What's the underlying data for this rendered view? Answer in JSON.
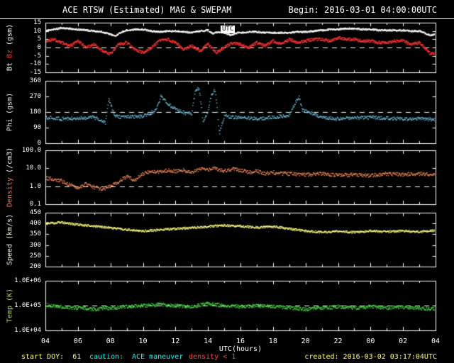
{
  "header": {
    "title": "ACE RTSW (Estimated) MAG & SWEPAM",
    "begin_label": "Begin: 2016-03-01 04:00:00UTC"
  },
  "footer": {
    "start_doy": "start DOY:  61",
    "caution_prefix": "caution:",
    "caution_text": "ACE maneuver",
    "caution_warn": "density < 1",
    "created": "created: 2016-03-02 03:17:04UTC"
  },
  "overlay": {
    "label": "UTC"
  },
  "x_axis": {
    "label": "UTC(hours)",
    "ticks": [
      "04",
      "06",
      "08",
      "10",
      "12",
      "14",
      "16",
      "18",
      "20",
      "22",
      "00",
      "02",
      "04"
    ]
  },
  "colors": {
    "background": "#000000",
    "frame": "#ffffff",
    "bt": "#ffffff",
    "bz": "#ff3333",
    "phi": "#6fc3df",
    "density": "#ff9060",
    "speed": "#ffff80",
    "temp": "#44dd44",
    "footer_yellow": "#ffff66",
    "footer_cyan": "#00ffff",
    "footer_red": "#ff4444"
  },
  "chart_data": {
    "type": "scatter",
    "title": "ACE RTSW (Estimated) MAG & SWEPAM",
    "x_label": "UTC(hours)",
    "x_range": [
      4,
      28
    ],
    "x_tick_hours": [
      4,
      6,
      8,
      10,
      12,
      14,
      16,
      18,
      20,
      22,
      24,
      26,
      28
    ],
    "panels": [
      {
        "name": "bt_bz",
        "scale": "linear",
        "ylim": [
          -15,
          15
        ],
        "dashed_at": 0,
        "yticks": [
          {
            "v": 15,
            "label": "15"
          },
          {
            "v": 10,
            "label": "10"
          },
          {
            "v": 5,
            "label": "5"
          },
          {
            "v": 0,
            "label": "0"
          },
          {
            "v": -5,
            "label": "-5"
          },
          {
            "v": -10,
            "label": "-10"
          },
          {
            "v": -15,
            "label": "-15"
          }
        ],
        "ylabel_parts": [
          {
            "text": "Bt ",
            "color": "#ffffff"
          },
          {
            "text": "Bz ",
            "color": "#ff3333"
          },
          {
            "text": "(gsm)",
            "color": "#ffffff"
          }
        ],
        "series": [
          {
            "name": "Bt",
            "color": "#ffffff",
            "noise": 0.5,
            "x": [
              4,
              4.5,
              5,
              5.5,
              6,
              6.5,
              7,
              7.5,
              8,
              8.3,
              8.6,
              9,
              9.5,
              10,
              10.5,
              11,
              11.5,
              12,
              12.5,
              13,
              13.5,
              14,
              14.3,
              14.6,
              15,
              15.4,
              15.8,
              16,
              16.5,
              17,
              17.5,
              18,
              18.5,
              19,
              19.5,
              20,
              20.5,
              21,
              21.5,
              22,
              22.5,
              23,
              23.5,
              24,
              24.5,
              25,
              25.5,
              26,
              26.5,
              27,
              27.3,
              27.6,
              28
            ],
            "y": [
              10,
              11,
              12,
              11.5,
              11,
              10.5,
              10,
              9.5,
              8,
              7,
              9,
              10.5,
              11,
              11,
              10,
              9.5,
              10,
              10,
              9.5,
              9,
              10,
              10.5,
              8.5,
              9.5,
              9,
              7.5,
              9,
              9,
              9.5,
              9.5,
              9,
              9,
              9,
              9,
              9.5,
              9.5,
              10,
              10.5,
              11,
              11,
              11.5,
              11.5,
              11,
              11,
              10.5,
              10.5,
              10.5,
              10.5,
              10,
              10,
              9,
              7.5,
              8
            ]
          },
          {
            "name": "Bz",
            "color": "#ff3333",
            "noise": 0.9,
            "x": [
              4,
              4.5,
              5,
              5.5,
              6,
              6.5,
              7,
              7.5,
              8,
              8.5,
              9,
              9.5,
              10,
              10.5,
              11,
              11.5,
              12,
              12.5,
              13,
              13.5,
              14,
              14.5,
              15,
              15.5,
              16,
              16.5,
              17,
              17.5,
              18,
              18.5,
              19,
              19.5,
              20,
              20.5,
              21,
              21.5,
              22,
              22.5,
              23,
              23.5,
              24,
              24.5,
              25,
              25.5,
              26,
              26.5,
              27,
              27.4,
              27.7,
              28
            ],
            "y": [
              4,
              5,
              3,
              1,
              4,
              0,
              2,
              -2,
              -4,
              2,
              3,
              -1,
              -3,
              0,
              4,
              5,
              3,
              -1,
              1,
              -2,
              2,
              -3,
              0,
              3,
              2,
              0,
              3,
              1,
              4,
              2,
              5,
              3,
              4,
              5,
              5,
              4,
              6,
              5,
              5,
              4,
              4,
              3,
              3,
              4,
              4,
              2,
              3,
              -1,
              -4,
              -3
            ]
          }
        ]
      },
      {
        "name": "phi",
        "scale": "linear",
        "ylim": [
          0,
          360
        ],
        "dashed_at": 180,
        "yticks": [
          {
            "v": 360,
            "label": "360"
          },
          {
            "v": 270,
            "label": "270"
          },
          {
            "v": 180,
            "label": "180"
          },
          {
            "v": 90,
            "label": "90"
          },
          {
            "v": 0,
            "label": "0"
          }
        ],
        "ylabel_parts": [
          {
            "text": "Phi (gsm)",
            "color": "#e8e8e8"
          }
        ],
        "series": [
          {
            "name": "Phi",
            "color": "#6fc3df",
            "noise": 10,
            "x": [
              4,
              5,
              6,
              7,
              7.7,
              7.9,
              8.1,
              8.3,
              9,
              10,
              10.8,
              11.1,
              11.4,
              11.8,
              12.2,
              12.6,
              13,
              13.2,
              13.45,
              13.7,
              14,
              14.2,
              14.45,
              14.7,
              15,
              15.5,
              16,
              17,
              18,
              19,
              19.4,
              19.6,
              19.8,
              20.5,
              21,
              22,
              23,
              24,
              25,
              26,
              27,
              28
            ],
            "y": [
              150,
              140,
              145,
              150,
              120,
              260,
              200,
              155,
              150,
              155,
              190,
              270,
              240,
              210,
              190,
              175,
              170,
              300,
              320,
              120,
              180,
              280,
              310,
              60,
              160,
              150,
              150,
              140,
              150,
              160,
              240,
              270,
              190,
              170,
              150,
              140,
              145,
              150,
              145,
              140,
              145,
              135
            ]
          }
        ]
      },
      {
        "name": "density",
        "scale": "log",
        "ylim": [
          0.1,
          100
        ],
        "dashed_at": 1,
        "yticks": [
          {
            "v": 100,
            "label": "100.0"
          },
          {
            "v": 10,
            "label": "10.0"
          },
          {
            "v": 1,
            "label": "1.0"
          },
          {
            "v": 0.1,
            "label": "0.1"
          }
        ],
        "ylabel_parts": [
          {
            "text": "Density ",
            "color": "#ff7050"
          },
          {
            "text": "(/cm3)",
            "color": "#ffffff"
          }
        ],
        "series": [
          {
            "name": "Density",
            "color": "#ff9060",
            "noise": 0.1,
            "x": [
              4,
              4.5,
              5,
              5.5,
              6,
              6.5,
              7,
              7.5,
              8,
              8.5,
              9,
              9.5,
              10,
              10.5,
              11,
              11.5,
              12,
              12.5,
              13,
              13.5,
              14,
              14.5,
              15,
              15.5,
              16,
              16.5,
              17,
              17.5,
              18,
              18.5,
              19,
              20,
              21,
              22,
              23,
              24,
              25,
              26,
              27,
              28
            ],
            "y": [
              3,
              2.5,
              2,
              1.2,
              0.8,
              1.4,
              0.9,
              0.7,
              1.0,
              1.8,
              3.5,
              2.2,
              5,
              7,
              6,
              8,
              7,
              8,
              6,
              9,
              8,
              10,
              7,
              9,
              8,
              6,
              7,
              5,
              6,
              5,
              5,
              4.5,
              5,
              4,
              4.5,
              4,
              5,
              4.5,
              5,
              4.5
            ]
          }
        ]
      },
      {
        "name": "speed",
        "scale": "linear",
        "ylim": [
          200,
          450
        ],
        "dashed_at": null,
        "yticks": [
          {
            "v": 450,
            "label": "450"
          },
          {
            "v": 400,
            "label": "400"
          },
          {
            "v": 350,
            "label": "350"
          },
          {
            "v": 300,
            "label": "300"
          },
          {
            "v": 250,
            "label": "250"
          },
          {
            "v": 200,
            "label": "200"
          }
        ],
        "ylabel_parts": [
          {
            "text": "Speed (km/s)",
            "color": "#f2f2e0"
          }
        ],
        "series": [
          {
            "name": "Speed",
            "color": "#ffff80",
            "noise": 5,
            "x": [
              4,
              5,
              6,
              7,
              8,
              9,
              10,
              11,
              12,
              13,
              14,
              15,
              16,
              17,
              18,
              19,
              20,
              21,
              22,
              23,
              24,
              25,
              26,
              27,
              28
            ],
            "y": [
              400,
              405,
              395,
              388,
              380,
              372,
              366,
              370,
              376,
              380,
              386,
              392,
              388,
              382,
              386,
              376,
              366,
              360,
              364,
              360,
              366,
              362,
              366,
              362,
              368
            ]
          }
        ]
      },
      {
        "name": "temp",
        "scale": "log",
        "ylim": [
          10000,
          1000000
        ],
        "dashed_at": 100000,
        "yticks": [
          {
            "v": 1000000,
            "label": "1.0E+06"
          },
          {
            "v": 100000,
            "label": "1.0E+05"
          },
          {
            "v": 10000,
            "label": "1.0E+04"
          }
        ],
        "ylabel_parts": [
          {
            "text": "Temp (K)",
            "color": "#a8d84a"
          }
        ],
        "series": [
          {
            "name": "Temp",
            "color": "#44dd44",
            "noise": 0.07,
            "x": [
              4,
              5,
              6,
              7,
              8,
              9,
              10,
              11,
              12,
              13,
              14,
              15,
              16,
              17,
              18,
              19,
              20,
              21,
              22,
              23,
              24,
              25,
              26,
              27,
              28
            ],
            "y": [
              110000,
              90000,
              80000,
              72000,
              80000,
              92000,
              100000,
              110000,
              100000,
              92000,
              120000,
              100000,
              92000,
              100000,
              92000,
              82000,
              72000,
              80000,
              90000,
              82000,
              90000,
              82000,
              88000,
              80000,
              72000
            ]
          }
        ]
      }
    ]
  }
}
